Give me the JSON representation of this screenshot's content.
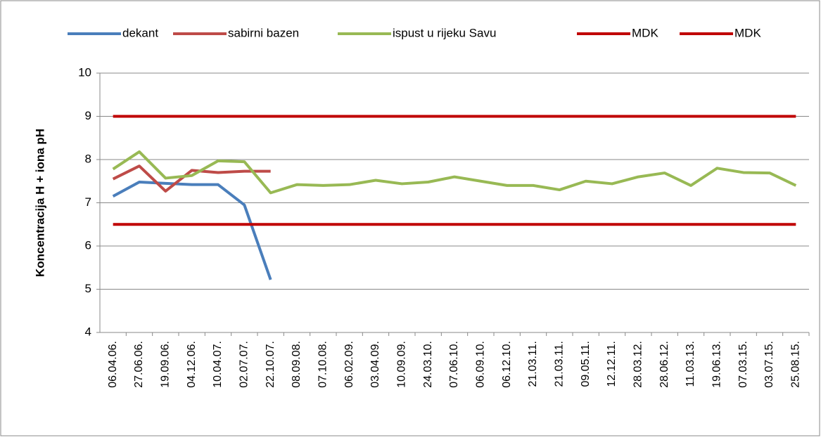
{
  "chart_data": {
    "type": "line",
    "y_label": "Koncentracija H + iona  pH",
    "categories": [
      "06.04.06.",
      "27.06.06.",
      "19.09.06.",
      "04.12.06.",
      "10.04.07.",
      "02.07.07.",
      "22.10.07.",
      "08.09.08.",
      "07.10.08.",
      "06.02.09.",
      "03.04.09.",
      "10.09.09.",
      "24.03.10.",
      "07.06.10.",
      "06.09.10.",
      "06.12.10.",
      "21.03.11.",
      "21.03.11.",
      "09.05.11.",
      "12.12.11.",
      "28.03.12.",
      "28.06.12.",
      "11.03.13.",
      "19.06.13.",
      "07.03.15.",
      "03.07.15.",
      "25.08.15."
    ],
    "series": [
      {
        "name": "dekant",
        "color": "#4a7ebb",
        "values": [
          7.15,
          7.48,
          7.45,
          7.42,
          7.42,
          6.95,
          5.22,
          null,
          null,
          null,
          null,
          null,
          null,
          null,
          null,
          null,
          null,
          null,
          null,
          null,
          null,
          null,
          null,
          null,
          null,
          null,
          null
        ]
      },
      {
        "name": "sabirni bazen",
        "color": "#be4b48",
        "values": [
          7.55,
          7.85,
          7.27,
          7.75,
          7.7,
          7.73,
          7.73,
          null,
          null,
          null,
          null,
          null,
          null,
          null,
          null,
          null,
          null,
          null,
          null,
          null,
          null,
          null,
          null,
          null,
          null,
          null,
          null
        ]
      },
      {
        "name": "ispust u rijeku Savu",
        "color": "#98b954",
        "values": [
          7.78,
          8.18,
          7.57,
          7.63,
          7.97,
          7.95,
          7.23,
          7.42,
          7.4,
          7.42,
          7.52,
          7.44,
          7.48,
          7.6,
          7.5,
          7.4,
          7.4,
          7.3,
          7.5,
          7.44,
          7.6,
          7.69,
          7.4,
          7.8,
          7.7,
          7.69,
          7.4
        ]
      },
      {
        "name": "MDK",
        "color": "#c00000",
        "values": [
          9,
          9,
          9,
          9,
          9,
          9,
          9,
          9,
          9,
          9,
          9,
          9,
          9,
          9,
          9,
          9,
          9,
          9,
          9,
          9,
          9,
          9,
          9,
          9,
          9,
          9,
          9
        ]
      },
      {
        "name": "MDK",
        "color": "#c00000",
        "values": [
          6.5,
          6.5,
          6.5,
          6.5,
          6.5,
          6.5,
          6.5,
          6.5,
          6.5,
          6.5,
          6.5,
          6.5,
          6.5,
          6.5,
          6.5,
          6.5,
          6.5,
          6.5,
          6.5,
          6.5,
          6.5,
          6.5,
          6.5,
          6.5,
          6.5,
          6.5,
          6.5
        ]
      }
    ],
    "ylim": [
      4,
      10
    ],
    "yticks": [
      4,
      5,
      6,
      7,
      8,
      9,
      10
    ],
    "grid": true,
    "legend": "top"
  }
}
